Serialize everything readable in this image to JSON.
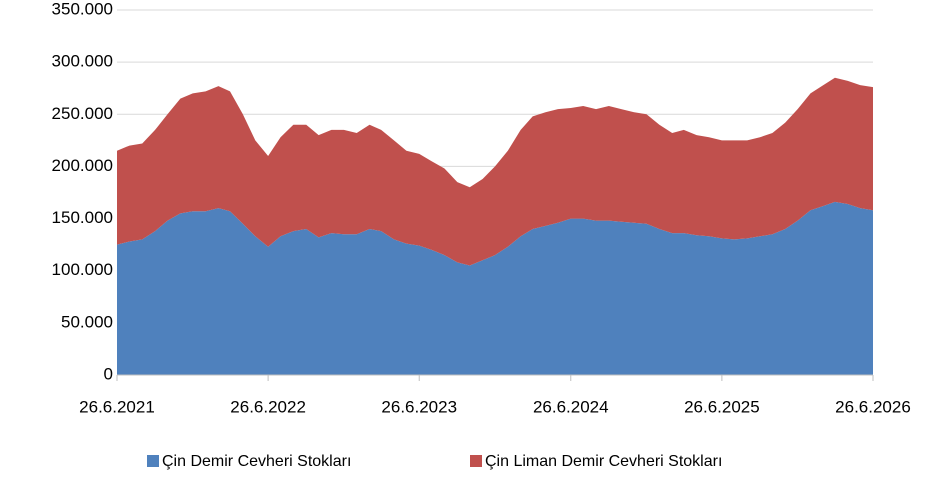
{
  "chart_data": {
    "type": "stacked_area",
    "x": [
      "26.6.2021",
      "26.7.2021",
      "26.8.2021",
      "26.9.2021",
      "26.10.2021",
      "26.11.2021",
      "26.12.2021",
      "26.1.2022",
      "26.2.2022",
      "26.3.2022",
      "26.4.2022",
      "26.5.2022",
      "26.6.2022",
      "26.7.2022",
      "26.8.2022",
      "26.9.2022",
      "26.10.2022",
      "26.11.2022",
      "26.12.2022",
      "26.1.2023",
      "26.2.2023",
      "26.3.2023",
      "26.4.2023",
      "26.5.2023",
      "26.6.2023",
      "26.7.2023",
      "26.8.2023",
      "26.9.2023",
      "26.10.2023",
      "26.11.2023",
      "26.12.2023",
      "26.1.2024",
      "26.2.2024",
      "26.3.2024",
      "26.4.2024",
      "26.5.2024",
      "26.6.2024",
      "26.7.2024",
      "26.8.2024",
      "26.9.2024",
      "26.10.2024",
      "26.11.2024",
      "26.12.2024",
      "26.1.2025",
      "26.2.2025",
      "26.3.2025",
      "26.4.2025",
      "26.5.2025",
      "26.6.2025",
      "26.7.2025",
      "26.8.2025",
      "26.9.2025",
      "26.10.2025",
      "26.11.2025",
      "26.12.2025",
      "26.1.2026",
      "26.2.2026",
      "26.3.2026",
      "26.4.2026",
      "26.5.2026",
      "26.6.2026"
    ],
    "series": [
      {
        "name": "Çin Demir Cevheri Stokları",
        "color": "#4f81bd",
        "values": [
          125000,
          128000,
          130000,
          138000,
          148000,
          155000,
          157000,
          157000,
          160000,
          157000,
          145000,
          133000,
          123000,
          133000,
          138000,
          140000,
          132000,
          136000,
          135000,
          135000,
          140000,
          138000,
          130000,
          126000,
          124000,
          120000,
          115000,
          108000,
          105000,
          110000,
          115000,
          123000,
          133000,
          140000,
          143000,
          146000,
          150000,
          150000,
          148000,
          148000,
          147000,
          146000,
          145000,
          140000,
          136000,
          136000,
          134000,
          133000,
          131000,
          130000,
          131000,
          133000,
          135000,
          140000,
          148000,
          158000,
          162000,
          166000,
          164000,
          160000,
          158000
        ]
      },
      {
        "name": "Çin Liman Demir Cevheri Stokları",
        "color": "#c0504d",
        "values": [
          90000,
          92000,
          92000,
          97000,
          102000,
          110000,
          113000,
          115000,
          117000,
          115000,
          105000,
          92000,
          87000,
          95000,
          102000,
          100000,
          98000,
          99000,
          100000,
          97000,
          100000,
          97000,
          95000,
          89000,
          88000,
          85000,
          83000,
          77000,
          75000,
          78000,
          85000,
          92000,
          102000,
          108000,
          109000,
          109000,
          106000,
          108000,
          107000,
          110000,
          108000,
          106000,
          105000,
          100000,
          96000,
          99000,
          96000,
          95000,
          94000,
          95000,
          94000,
          95000,
          97000,
          102000,
          107000,
          112000,
          116000,
          119000,
          118000,
          118000,
          118000
        ]
      }
    ],
    "xlim": [
      "26.6.2021",
      "26.6.2026"
    ],
    "xticks": [
      "26.6.2021",
      "26.6.2022",
      "26.6.2023",
      "26.6.2024",
      "26.6.2025",
      "26.6.2026"
    ],
    "ylim": [
      0,
      350000
    ],
    "yticks": [
      0,
      {
        "value": 50000,
        "label": "50.000"
      },
      {
        "value": 100000,
        "label": "100.000"
      },
      {
        "value": 150000,
        "label": "150.000"
      },
      {
        "value": 200000,
        "label": "200.000"
      },
      {
        "value": 250000,
        "label": "250.000"
      },
      {
        "value": 300000,
        "label": "300.000"
      },
      {
        "value": 350000,
        "label": "350.000"
      }
    ],
    "grid": true,
    "legend": "bottom"
  }
}
